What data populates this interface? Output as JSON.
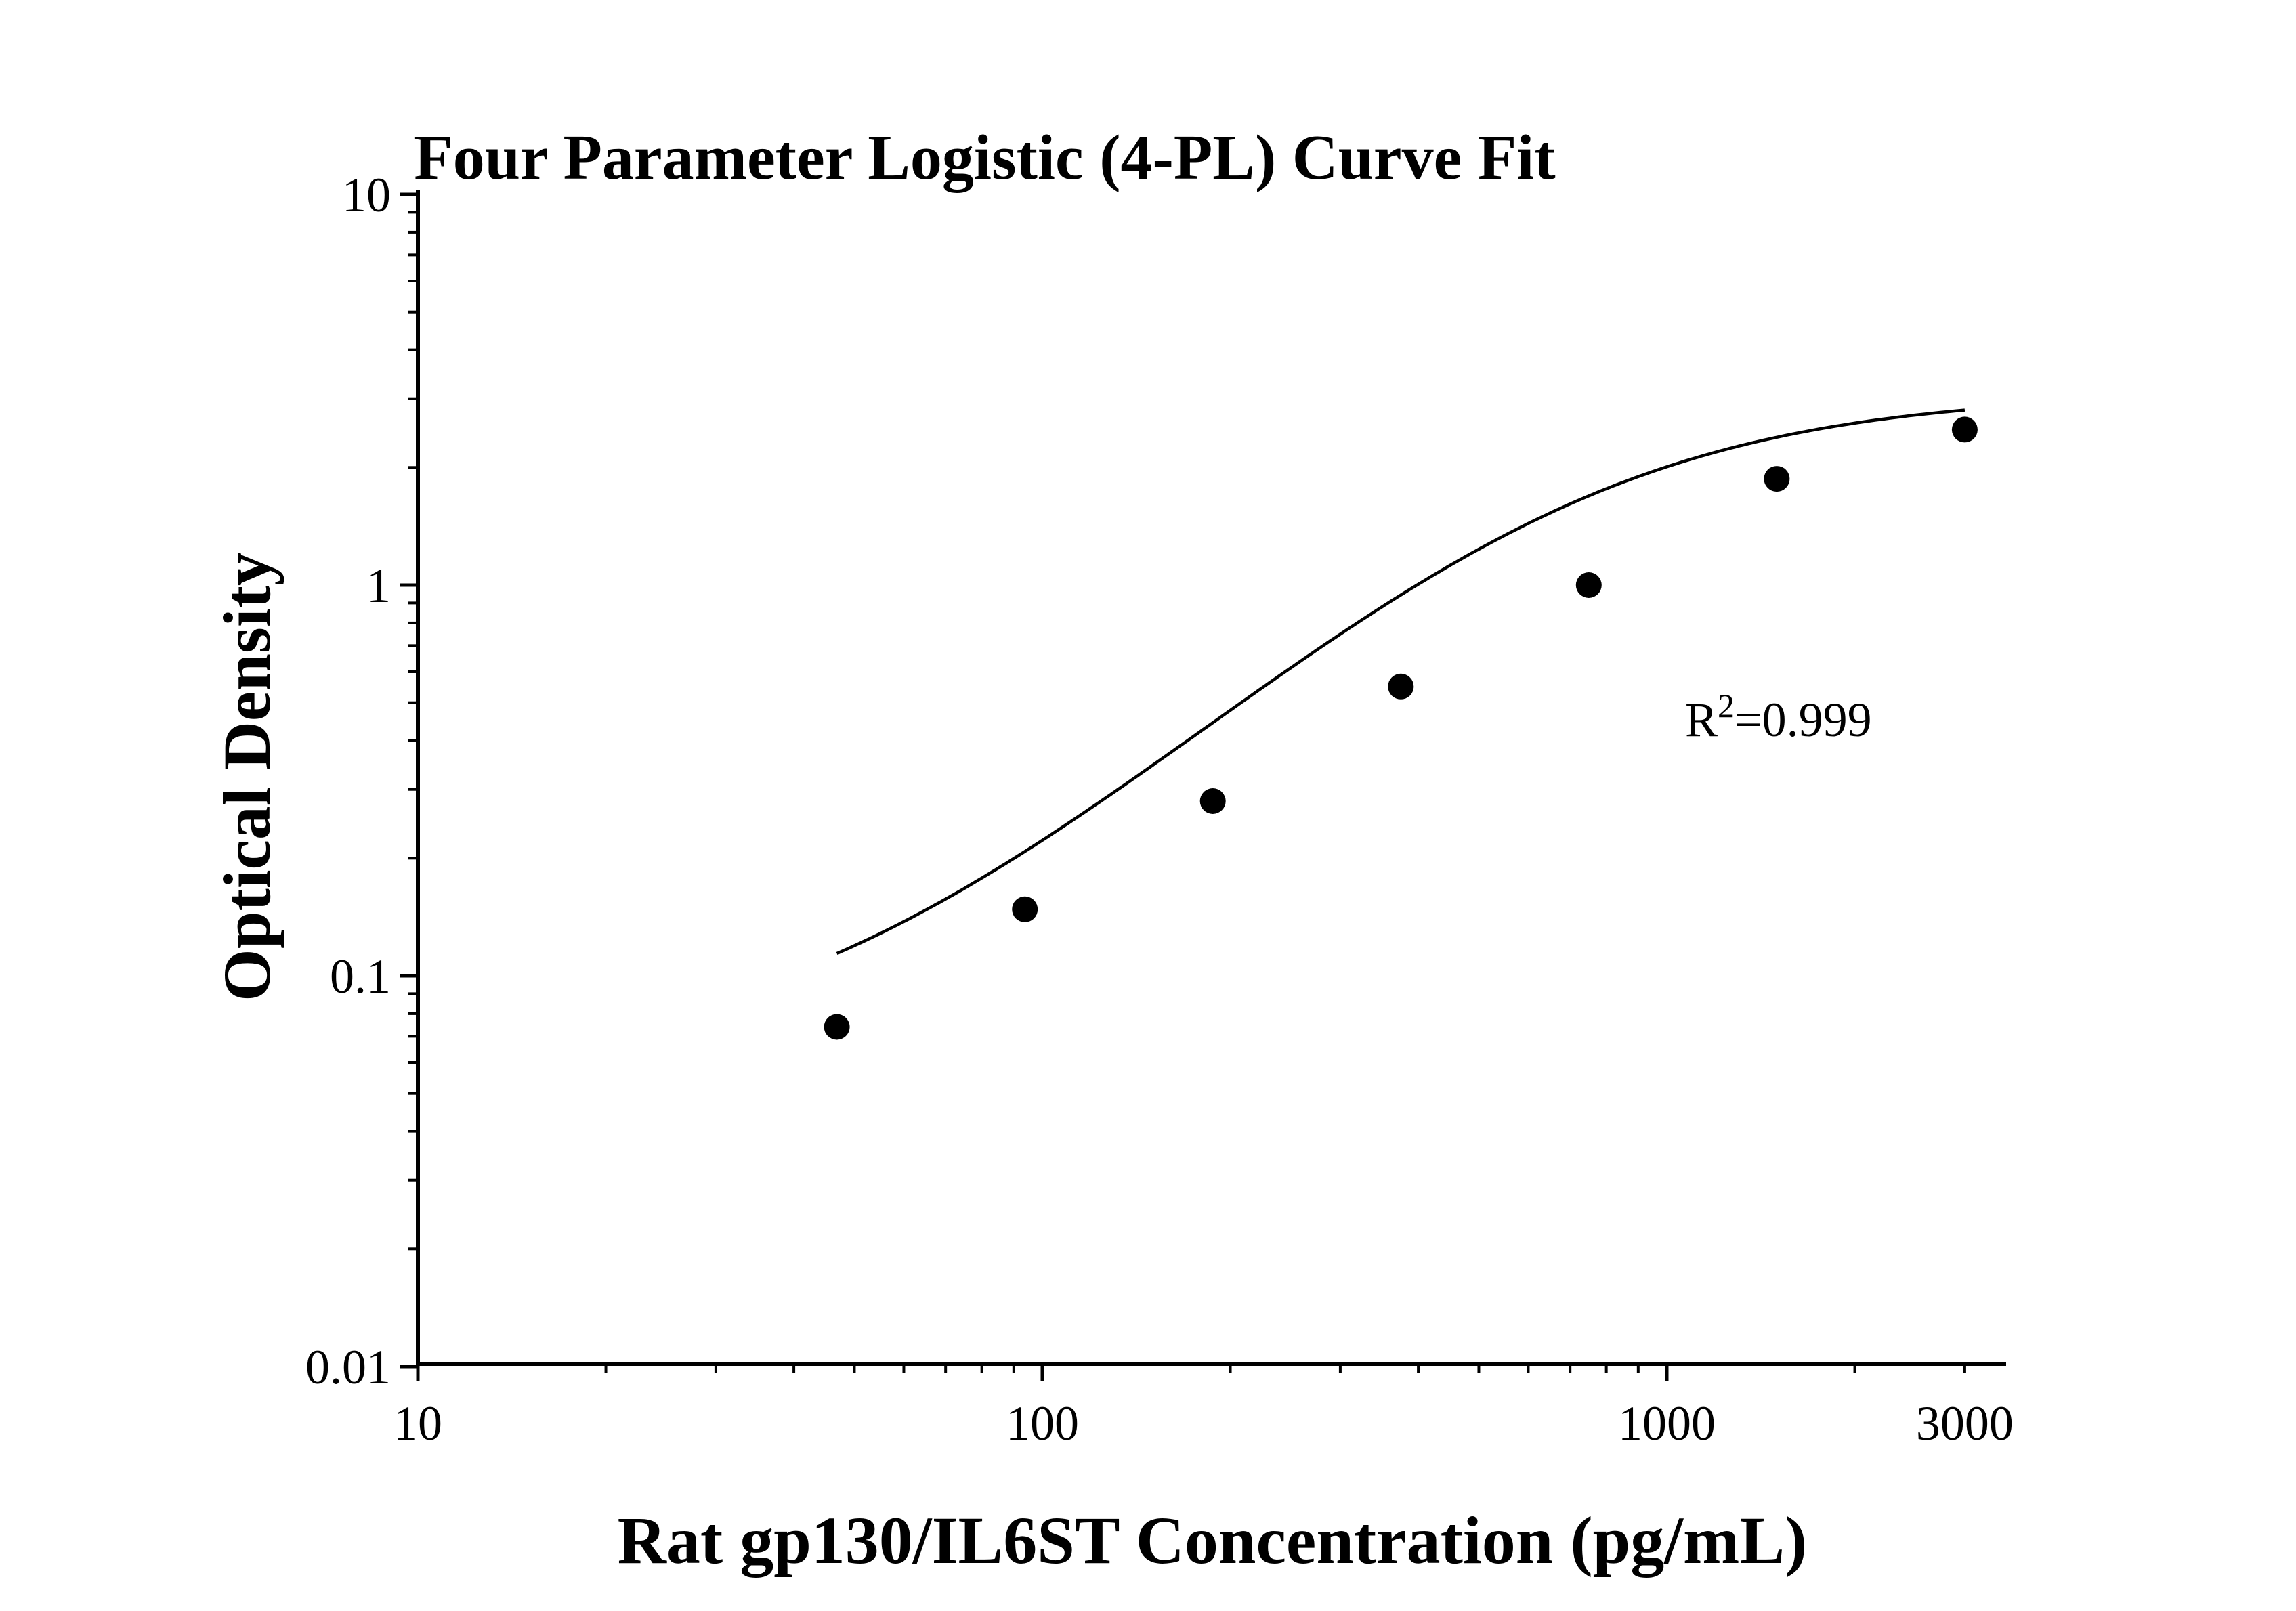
{
  "chart_data": {
    "type": "scatter",
    "title": "Four Parameter Logistic (4-PL) Curve Fit",
    "xlabel": "Rat gp130/IL6ST Concentration (pg/mL)",
    "ylabel": "Optical Density",
    "x_scale": "log",
    "y_scale": "log",
    "xlim": [
      10,
      3500
    ],
    "ylim": [
      0.01,
      10
    ],
    "x_ticks": [
      {
        "value": 10,
        "label": "10"
      },
      {
        "value": 100,
        "label": "100"
      },
      {
        "value": 1000,
        "label": "1000"
      },
      {
        "value": 3000,
        "label": "3000"
      }
    ],
    "y_ticks": [
      {
        "value": 0.01,
        "label": "0.01"
      },
      {
        "value": 0.1,
        "label": "0.1"
      },
      {
        "value": 1,
        "label": "1"
      },
      {
        "value": 10,
        "label": "10"
      }
    ],
    "grid": false,
    "series": [
      {
        "x": [
          46.875,
          93.75,
          187.5,
          375,
          750,
          1500,
          3000
        ],
        "y": [
          0.074,
          0.148,
          0.28,
          0.55,
          1.0,
          1.87,
          2.5
        ]
      }
    ],
    "fit_curve": {
      "model": "4PL",
      "x_range": [
        46.875,
        3000
      ],
      "params": {
        "A": 0.06,
        "B": 1.5,
        "C": 680,
        "D": 3.1
      },
      "color": "#000000"
    },
    "annotation": {
      "base": "R",
      "sup": "2",
      "rest": "=0.999"
    },
    "colors": {
      "points": "#000000",
      "axis": "#000000"
    }
  }
}
